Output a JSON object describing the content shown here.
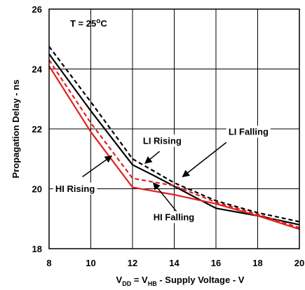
{
  "chart_data": {
    "type": "line",
    "xlabel_parts": {
      "v1": "V",
      "sub1": "DD",
      "eq": " = V",
      "sub2": "HB",
      "rest": " - Supply Voltage - V"
    },
    "ylabel": "Propagation Delay - ns",
    "xlim": [
      8,
      20
    ],
    "ylim": [
      18,
      26
    ],
    "x_ticks": [
      8,
      10,
      12,
      14,
      16,
      18,
      20
    ],
    "y_ticks": [
      18,
      20,
      22,
      24,
      26
    ],
    "grid": true,
    "condition": {
      "prefix": "T = 25",
      "sup": "o",
      "suffix": "C"
    },
    "series": [
      {
        "name": "LI Falling",
        "color": "#000000",
        "dash": true,
        "x": [
          8,
          10,
          12,
          14,
          16,
          18,
          20
        ],
        "y": [
          24.75,
          22.9,
          21.0,
          20.2,
          19.6,
          19.2,
          18.9
        ]
      },
      {
        "name": "LI Rising",
        "color": "#000000",
        "dash": false,
        "x": [
          8,
          10,
          12,
          13,
          16,
          18,
          20
        ],
        "y": [
          24.5,
          22.6,
          20.8,
          20.45,
          19.35,
          19.1,
          18.8
        ]
      },
      {
        "name": "HI Falling",
        "color": "#e02020",
        "dash": true,
        "x": [
          8,
          10,
          12,
          14,
          16,
          18,
          20
        ],
        "y": [
          24.3,
          22.2,
          20.35,
          20.1,
          19.55,
          19.15,
          18.7
        ]
      },
      {
        "name": "HI Rising",
        "color": "#e02020",
        "dash": false,
        "x": [
          8,
          10,
          12,
          14,
          16,
          18,
          20
        ],
        "y": [
          24.1,
          21.9,
          20.05,
          19.8,
          19.5,
          19.1,
          18.65
        ]
      }
    ],
    "annotations": [
      {
        "text": "LI Falling",
        "tx": 16.6,
        "ty": 21.8,
        "ax": 16.5,
        "ay": 21.55,
        "hx": 14.4,
        "hy": 20.4
      },
      {
        "text": "LI Rising",
        "tx": 12.5,
        "ty": 21.5,
        "ax": 13.3,
        "ay": 21.25,
        "hx": 12.6,
        "hy": 20.85
      },
      {
        "text": "HI Rising",
        "tx": 8.3,
        "ty": 19.9,
        "ax": 9.6,
        "ay": 20.4,
        "hx": 11.0,
        "hy": 21.1
      },
      {
        "text": "HI Falling",
        "tx": 13.0,
        "ty": 18.95,
        "ax": 14.1,
        "ay": 19.25,
        "hx": 13.0,
        "hy": 20.2
      }
    ]
  }
}
